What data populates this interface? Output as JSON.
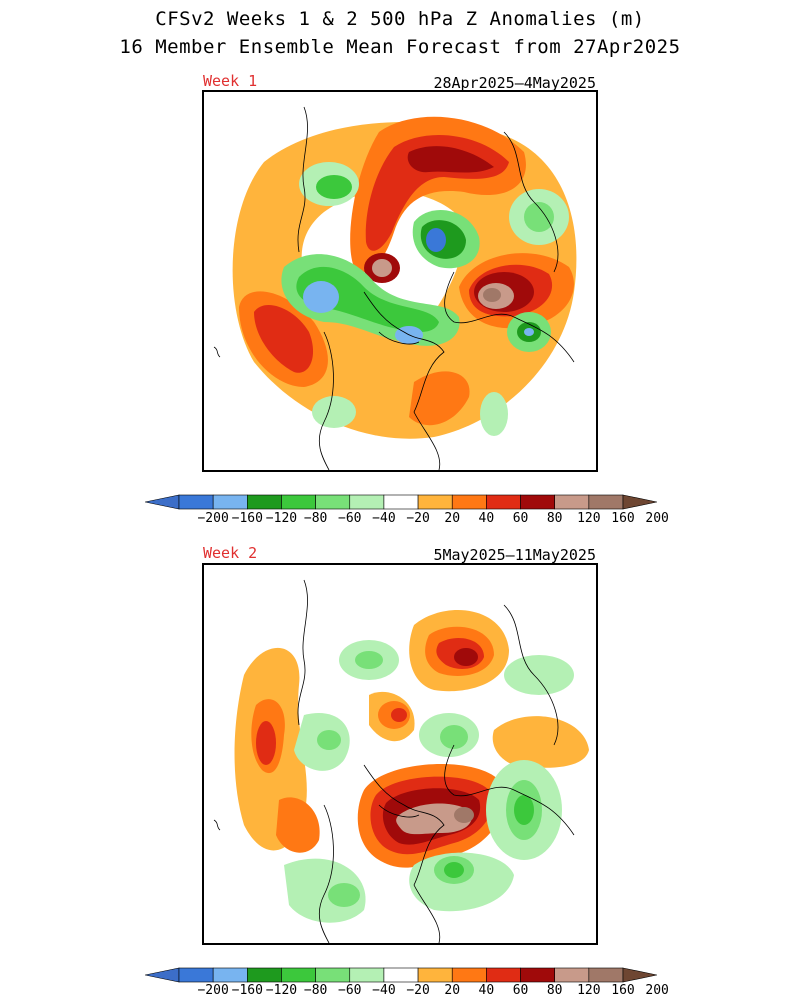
{
  "header": {
    "title_line1": "CFSv2 Weeks 1 & 2 500 hPa Z Anomalies (m)",
    "title_line2": "16 Member Ensemble Mean Forecast from 27Apr2025"
  },
  "panels": [
    {
      "week_label": "Week 1",
      "date_range": "28Apr2025–4May2025"
    },
    {
      "week_label": "Week 2",
      "date_range": "5May2025–11May2025"
    }
  ],
  "colorbar": {
    "labels": [
      "−200",
      "−160",
      "−120",
      "−80",
      "−60",
      "−40",
      "−20",
      "20",
      "40",
      "60",
      "80",
      "120",
      "160",
      "200"
    ],
    "colors": [
      "#3a78d8",
      "#78b4f0",
      "#1e9a1e",
      "#3cc83c",
      "#78e078",
      "#b4f0b4",
      "#ffffff",
      "#ffb43c",
      "#ff7814",
      "#e02c14",
      "#a00a0a",
      "#c89a8a",
      "#a07868"
    ],
    "end_low": "#3c6ec8",
    "end_high": "#6e4632"
  }
}
